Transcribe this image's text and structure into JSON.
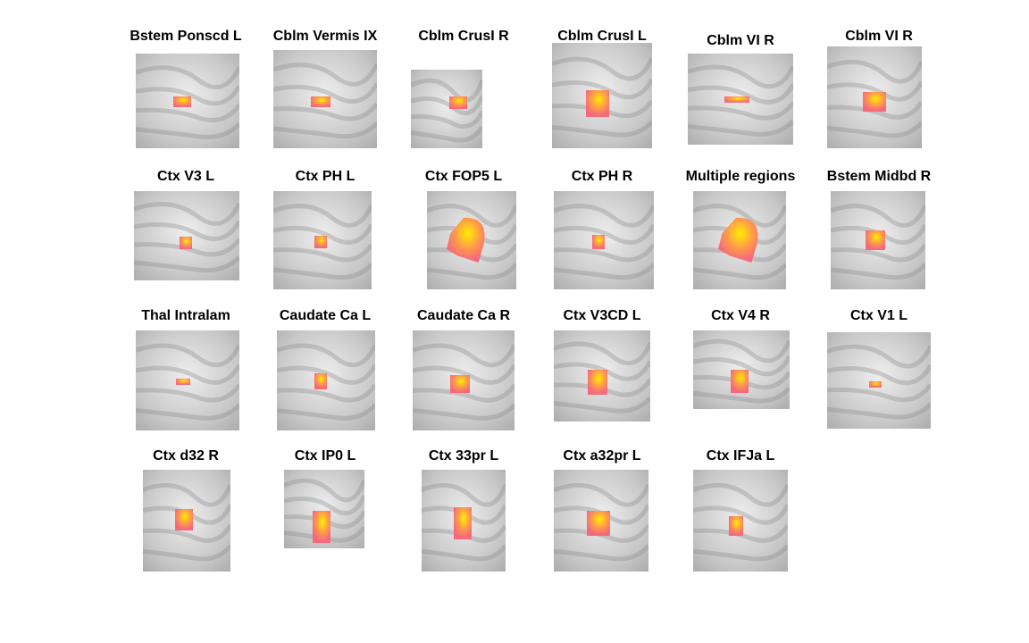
{
  "figure": {
    "panels": [
      {
        "label": "Bstem Ponscd L"
      },
      {
        "label": "Cblm Vermis IX"
      },
      {
        "label": "Cblm CrusI R"
      },
      {
        "label": "Cblm CrusI L"
      },
      {
        "label": "Cblm VI R"
      },
      {
        "label": "Cblm VI R"
      },
      {
        "label": "Ctx V3 L"
      },
      {
        "label": "Ctx PH L"
      },
      {
        "label": "Ctx FOP5 L"
      },
      {
        "label": "Ctx PH R"
      },
      {
        "label": "Multiple regions"
      },
      {
        "label": "Bstem Midbd R"
      },
      {
        "label": "Thal Intralam"
      },
      {
        "label": "Caudate Ca L"
      },
      {
        "label": "Caudate Ca R"
      },
      {
        "label": "Ctx V3CD L"
      },
      {
        "label": "Ctx V4 R"
      },
      {
        "label": "Ctx V1 L"
      },
      {
        "label": "Ctx d32 R"
      },
      {
        "label": "Ctx IP0 L"
      },
      {
        "label": "Ctx 33pr L"
      },
      {
        "label": "Ctx a32pr L"
      },
      {
        "label": "Ctx IFJa L"
      }
    ],
    "colors": {
      "background": "#ffffff",
      "brain_light": "#eeeeee",
      "brain_mid": "#c8c8c8",
      "brain_dark": "#8a8a8a",
      "overlay_low": "#f46a7c",
      "overlay_mid": "#ff9a4a",
      "overlay_high": "#ffee00"
    }
  }
}
